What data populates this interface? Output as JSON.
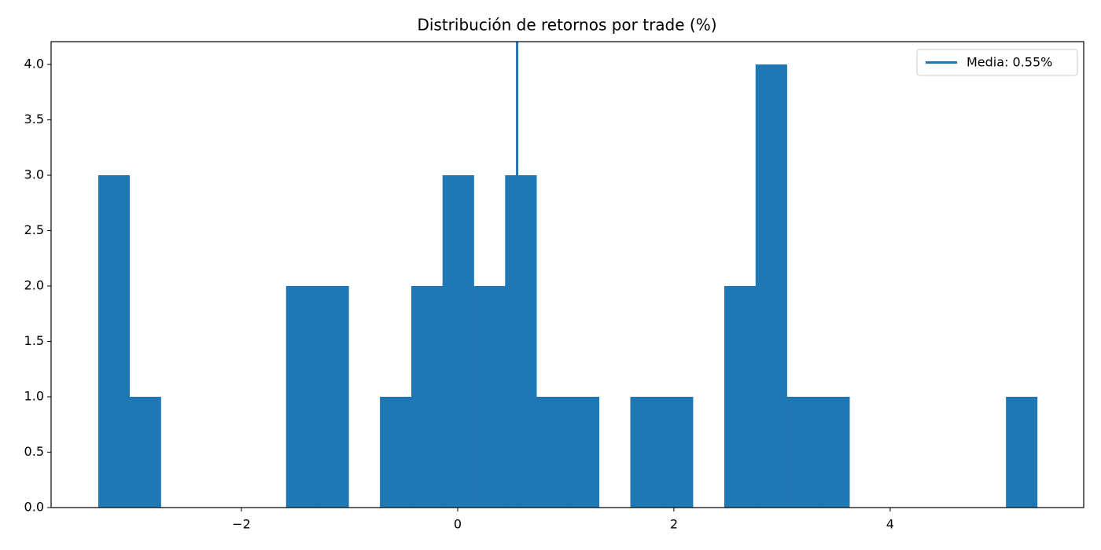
{
  "chart_data": {
    "type": "histogram",
    "title": "Distribución de retornos por trade (%)",
    "bins": [
      -3.324,
      -3.035,
      -2.745,
      -2.456,
      -2.166,
      -1.877,
      -1.587,
      -1.298,
      -1.008,
      -0.719,
      -0.429,
      -0.14,
      0.15,
      0.439,
      0.729,
      1.018,
      1.308,
      1.597,
      1.887,
      2.176,
      2.466,
      2.755,
      3.045,
      3.334,
      3.624,
      3.913,
      4.203,
      4.492,
      4.782,
      5.071,
      5.36
    ],
    "counts": [
      3,
      1,
      0,
      0,
      0,
      0,
      2,
      2,
      0,
      1,
      2,
      3,
      2,
      3,
      1,
      1,
      0,
      1,
      1,
      0,
      2,
      4,
      1,
      1,
      0,
      0,
      0,
      0,
      0,
      1
    ],
    "color": "#1f77b4",
    "mean_line": {
      "value": 0.55,
      "label": "Media: 0.55%",
      "color": "#1f77b4"
    },
    "legend": "upper right",
    "xlim": [
      -3.76,
      5.79
    ],
    "ylim": [
      0,
      4.206
    ],
    "xticks": [
      {
        "value": -2,
        "label": "−2"
      },
      0,
      2,
      4
    ],
    "yticks": [
      {
        "value": 0,
        "label": "0.0"
      },
      {
        "value": 0.5,
        "label": "0.5"
      },
      {
        "value": 1,
        "label": "1.0"
      },
      {
        "value": 1.5,
        "label": "1.5"
      },
      {
        "value": 2,
        "label": "2.0"
      },
      {
        "value": 2.5,
        "label": "2.5"
      },
      {
        "value": 3,
        "label": "3.0"
      },
      {
        "value": 3.5,
        "label": "3.5"
      },
      {
        "value": 4,
        "label": "4.0"
      }
    ]
  }
}
